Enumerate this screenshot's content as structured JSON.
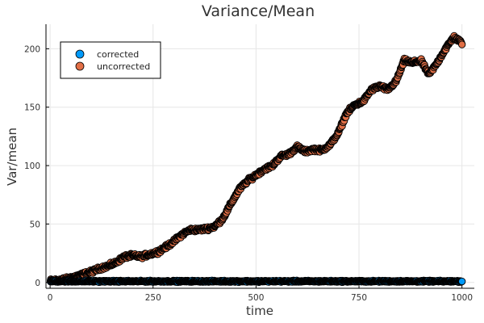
{
  "chart_data": {
    "type": "scatter",
    "title": "Variance/Mean",
    "xlabel": "time",
    "ylabel": "Var/mean",
    "xlim": [
      -10,
      1030
    ],
    "ylim": [
      -5,
      221
    ],
    "xticks": [
      0,
      250,
      500,
      750,
      1000
    ],
    "yticks": [
      0,
      50,
      100,
      150,
      200
    ],
    "grid": true,
    "legend_position": "top-left",
    "series": [
      {
        "name": "corrected",
        "color": "#009AFA",
        "generator": "flat",
        "x_range": [
          1,
          1000
        ],
        "level": 1.0,
        "noise": 0.6
      },
      {
        "name": "uncorrected",
        "color": "#E26F46",
        "generator": "interpolate",
        "x_range": [
          1,
          1000
        ],
        "knots": [
          [
            1,
            1.5
          ],
          [
            20,
            2
          ],
          [
            40,
            3
          ],
          [
            60,
            5
          ],
          [
            80,
            7
          ],
          [
            100,
            9
          ],
          [
            120,
            12
          ],
          [
            140,
            14
          ],
          [
            160,
            17
          ],
          [
            180,
            22
          ],
          [
            200,
            23
          ],
          [
            220,
            22
          ],
          [
            240,
            24
          ],
          [
            260,
            26
          ],
          [
            280,
            30
          ],
          [
            300,
            35
          ],
          [
            320,
            41
          ],
          [
            340,
            45
          ],
          [
            360,
            45
          ],
          [
            380,
            46
          ],
          [
            400,
            48
          ],
          [
            420,
            55
          ],
          [
            440,
            68
          ],
          [
            460,
            80
          ],
          [
            480,
            87
          ],
          [
            500,
            92
          ],
          [
            520,
            97
          ],
          [
            540,
            100
          ],
          [
            560,
            108
          ],
          [
            580,
            110
          ],
          [
            600,
            116
          ],
          [
            620,
            112
          ],
          [
            640,
            114
          ],
          [
            660,
            113
          ],
          [
            680,
            118
          ],
          [
            700,
            128
          ],
          [
            720,
            145
          ],
          [
            740,
            152
          ],
          [
            760,
            155
          ],
          [
            780,
            165
          ],
          [
            800,
            168
          ],
          [
            820,
            165
          ],
          [
            840,
            172
          ],
          [
            860,
            190
          ],
          [
            880,
            188
          ],
          [
            900,
            190
          ],
          [
            920,
            178
          ],
          [
            940,
            188
          ],
          [
            960,
            200
          ],
          [
            980,
            210
          ],
          [
            1000,
            205
          ]
        ],
        "noise": 1.5
      }
    ]
  }
}
